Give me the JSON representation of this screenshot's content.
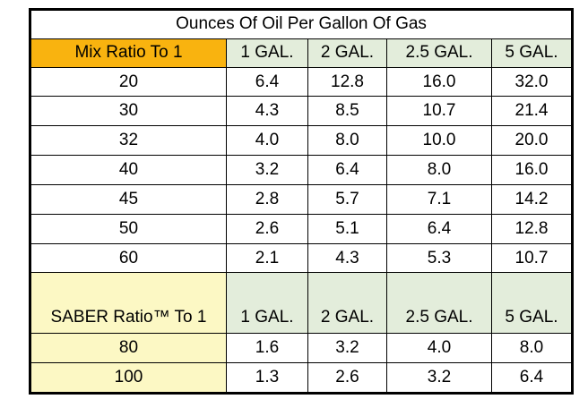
{
  "table": {
    "title": "Ounces Of Oil Per Gallon Of Gas",
    "mix_header": {
      "label": "Mix Ratio To 1",
      "columns": [
        "1 GAL.",
        "2 GAL.",
        "2.5 GAL.",
        "5 GAL."
      ]
    },
    "mix_rows": [
      {
        "ratio": "20",
        "values": [
          "6.4",
          "12.8",
          "16.0",
          "32.0"
        ]
      },
      {
        "ratio": "30",
        "values": [
          "4.3",
          "8.5",
          "10.7",
          "21.4"
        ]
      },
      {
        "ratio": "32",
        "values": [
          "4.0",
          "8.0",
          "10.0",
          "20.0"
        ]
      },
      {
        "ratio": "40",
        "values": [
          "3.2",
          "6.4",
          "8.0",
          "16.0"
        ]
      },
      {
        "ratio": "45",
        "values": [
          "2.8",
          "5.7",
          "7.1",
          "14.2"
        ]
      },
      {
        "ratio": "50",
        "values": [
          "2.6",
          "5.1",
          "6.4",
          "12.8"
        ]
      },
      {
        "ratio": "60",
        "values": [
          "2.1",
          "4.3",
          "5.3",
          "10.7"
        ]
      }
    ],
    "saber_header": {
      "label": "SABER Ratio™ To 1",
      "columns": [
        "1 GAL.",
        "2 GAL.",
        "2.5 GAL.",
        "5 GAL."
      ]
    },
    "saber_rows": [
      {
        "ratio": "80",
        "values": [
          "1.6",
          "3.2",
          "4.0",
          "8.0"
        ]
      },
      {
        "ratio": "100",
        "values": [
          "1.3",
          "2.6",
          "3.2",
          "6.4"
        ]
      }
    ],
    "colors": {
      "mix_header_bg": "#f9b30f",
      "column_header_bg": "#e3eddb",
      "saber_bg": "#fcf8c4"
    }
  }
}
